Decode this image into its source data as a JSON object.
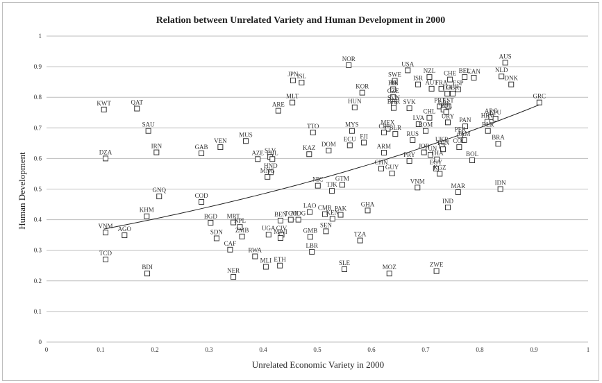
{
  "chart_data": {
    "type": "scatter",
    "title": "Relation between Unrelated Variety and Human Development in 2000",
    "xlabel": "Unrelated Economic Variety in 2000",
    "ylabel": "Human Development",
    "xlim": [
      0,
      1
    ],
    "ylim": [
      0,
      1
    ],
    "x_ticks": [
      "0",
      "0.1",
      "0.2",
      "0.3",
      "0.4",
      "0.5",
      "0.6",
      "0.7",
      "0.8",
      "0.9",
      "1"
    ],
    "y_ticks": [
      "0",
      "0.1",
      "0.2",
      "0.3",
      "0.4",
      "0.5",
      "0.6",
      "0.7",
      "0.8",
      "0.9",
      "1"
    ],
    "grid": "horizontal",
    "trendline": "exponential",
    "points": [
      {
        "label": "AUS",
        "x": 0.847,
        "y": 0.913
      },
      {
        "label": "NOR",
        "x": 0.558,
        "y": 0.905
      },
      {
        "label": "USA",
        "x": 0.667,
        "y": 0.888
      },
      {
        "label": "NLD",
        "x": 0.84,
        "y": 0.868
      },
      {
        "label": "NZL",
        "x": 0.707,
        "y": 0.866
      },
      {
        "label": "CHE",
        "x": 0.745,
        "y": 0.858
      },
      {
        "label": "BEL",
        "x": 0.772,
        "y": 0.866
      },
      {
        "label": "CAN",
        "x": 0.789,
        "y": 0.864
      },
      {
        "label": "DNK",
        "x": 0.858,
        "y": 0.842
      },
      {
        "label": "JPN",
        "x": 0.455,
        "y": 0.855
      },
      {
        "label": "ISL",
        "x": 0.471,
        "y": 0.848
      },
      {
        "label": "SWE",
        "x": 0.643,
        "y": 0.854
      },
      {
        "label": "ISR",
        "x": 0.686,
        "y": 0.842
      },
      {
        "label": "IRL",
        "x": 0.64,
        "y": 0.826
      },
      {
        "label": "AUT",
        "x": 0.711,
        "y": 0.828
      },
      {
        "label": "FRA",
        "x": 0.729,
        "y": 0.828
      },
      {
        "label": "ESP",
        "x": 0.76,
        "y": 0.826
      },
      {
        "label": "KOR",
        "x": 0.583,
        "y": 0.815
      },
      {
        "label": "FIN",
        "x": 0.64,
        "y": 0.826
      },
      {
        "label": "ITA",
        "x": 0.74,
        "y": 0.812
      },
      {
        "label": "GBR",
        "x": 0.75,
        "y": 0.812
      },
      {
        "label": "CZE",
        "x": 0.64,
        "y": 0.801
      },
      {
        "label": "MLT",
        "x": 0.454,
        "y": 0.783
      },
      {
        "label": "SVN",
        "x": 0.641,
        "y": 0.778
      },
      {
        "label": "HUN",
        "x": 0.569,
        "y": 0.767
      },
      {
        "label": "PRT",
        "x": 0.726,
        "y": 0.77
      },
      {
        "label": "EST",
        "x": 0.742,
        "y": 0.77
      },
      {
        "label": "KWT",
        "x": 0.106,
        "y": 0.76
      },
      {
        "label": "QAT",
        "x": 0.167,
        "y": 0.763
      },
      {
        "label": "ARE",
        "x": 0.428,
        "y": 0.756
      },
      {
        "label": "BHR",
        "x": 0.641,
        "y": 0.765
      },
      {
        "label": "SVK",
        "x": 0.67,
        "y": 0.764
      },
      {
        "label": "CRI",
        "x": 0.733,
        "y": 0.76
      },
      {
        "label": "POL",
        "x": 0.738,
        "y": 0.752
      },
      {
        "label": "GRC",
        "x": 0.91,
        "y": 0.783
      },
      {
        "label": "ARG",
        "x": 0.821,
        "y": 0.735
      },
      {
        "label": "LTU",
        "x": 0.829,
        "y": 0.73
      },
      {
        "label": "HRV",
        "x": 0.814,
        "y": 0.72
      },
      {
        "label": "URY",
        "x": 0.741,
        "y": 0.718
      },
      {
        "label": "LVA",
        "x": 0.687,
        "y": 0.712
      },
      {
        "label": "CHL",
        "x": 0.707,
        "y": 0.733
      },
      {
        "label": "PAN",
        "x": 0.773,
        "y": 0.705
      },
      {
        "label": "ROM",
        "x": 0.7,
        "y": 0.69
      },
      {
        "label": "MEX",
        "x": 0.63,
        "y": 0.697
      },
      {
        "label": "MYS",
        "x": 0.564,
        "y": 0.69
      },
      {
        "label": "BLR",
        "x": 0.815,
        "y": 0.69
      },
      {
        "label": "SAU",
        "x": 0.188,
        "y": 0.69
      },
      {
        "label": "TTO",
        "x": 0.492,
        "y": 0.685
      },
      {
        "label": "CRI",
        "x": 0.623,
        "y": 0.685
      },
      {
        "label": "BLR",
        "x": 0.644,
        "y": 0.68
      },
      {
        "label": "RUS",
        "x": 0.676,
        "y": 0.66
      },
      {
        "label": "PER",
        "x": 0.764,
        "y": 0.675
      },
      {
        "label": "JAM",
        "x": 0.771,
        "y": 0.66
      },
      {
        "label": "FJI",
        "x": 0.586,
        "y": 0.652
      },
      {
        "label": "ECU",
        "x": 0.56,
        "y": 0.643
      },
      {
        "label": "MUS",
        "x": 0.368,
        "y": 0.657
      },
      {
        "label": "BRA",
        "x": 0.834,
        "y": 0.648
      },
      {
        "label": "UKR",
        "x": 0.73,
        "y": 0.642
      },
      {
        "label": "VEN",
        "x": 0.321,
        "y": 0.637
      },
      {
        "label": "COL",
        "x": 0.762,
        "y": 0.637
      },
      {
        "label": "DOM",
        "x": 0.521,
        "y": 0.626
      },
      {
        "label": "TUN",
        "x": 0.732,
        "y": 0.63
      },
      {
        "label": "IRN",
        "x": 0.203,
        "y": 0.62
      },
      {
        "label": "GAB",
        "x": 0.286,
        "y": 0.617
      },
      {
        "label": "KAZ",
        "x": 0.485,
        "y": 0.614
      },
      {
        "label": "ARM",
        "x": 0.623,
        "y": 0.619
      },
      {
        "label": "JOR",
        "x": 0.697,
        "y": 0.62
      },
      {
        "label": "TUN",
        "x": 0.709,
        "y": 0.612
      },
      {
        "label": "SLV",
        "x": 0.413,
        "y": 0.605
      },
      {
        "label": "DZA",
        "x": 0.109,
        "y": 0.6
      },
      {
        "label": "AZE",
        "x": 0.39,
        "y": 0.598
      },
      {
        "label": "PHL",
        "x": 0.417,
        "y": 0.598
      },
      {
        "label": "BOL",
        "x": 0.786,
        "y": 0.594
      },
      {
        "label": "PRY",
        "x": 0.67,
        "y": 0.592
      },
      {
        "label": "THA",
        "x": 0.721,
        "y": 0.597
      },
      {
        "label": "CHN",
        "x": 0.618,
        "y": 0.567
      },
      {
        "label": "EGY",
        "x": 0.719,
        "y": 0.567
      },
      {
        "label": "HND",
        "x": 0.414,
        "y": 0.555
      },
      {
        "label": "KGZ",
        "x": 0.726,
        "y": 0.55
      },
      {
        "label": "GUY",
        "x": 0.638,
        "y": 0.551
      },
      {
        "label": "MNG",
        "x": 0.408,
        "y": 0.54
      },
      {
        "label": "GTM",
        "x": 0.546,
        "y": 0.514
      },
      {
        "label": "NIC",
        "x": 0.501,
        "y": 0.511
      },
      {
        "label": "VNM",
        "x": 0.685,
        "y": 0.505
      },
      {
        "label": "TJK",
        "x": 0.527,
        "y": 0.494
      },
      {
        "label": "IDN",
        "x": 0.838,
        "y": 0.5
      },
      {
        "label": "MAR",
        "x": 0.76,
        "y": 0.49
      },
      {
        "label": "GNQ",
        "x": 0.208,
        "y": 0.476
      },
      {
        "label": "COD",
        "x": 0.286,
        "y": 0.458
      },
      {
        "label": "IND",
        "x": 0.741,
        "y": 0.44
      },
      {
        "label": "GHA",
        "x": 0.593,
        "y": 0.43
      },
      {
        "label": "LAO",
        "x": 0.486,
        "y": 0.425
      },
      {
        "label": "CMR",
        "x": 0.514,
        "y": 0.418
      },
      {
        "label": "PAK",
        "x": 0.543,
        "y": 0.416
      },
      {
        "label": "KHM",
        "x": 0.185,
        "y": 0.411
      },
      {
        "label": "KEN",
        "x": 0.528,
        "y": 0.403
      },
      {
        "label": "TGO",
        "x": 0.451,
        "y": 0.4
      },
      {
        "label": "BEN",
        "x": 0.432,
        "y": 0.397
      },
      {
        "label": "MDG",
        "x": 0.465,
        "y": 0.4
      },
      {
        "label": "BGD",
        "x": 0.303,
        "y": 0.39
      },
      {
        "label": "MRT",
        "x": 0.345,
        "y": 0.391
      },
      {
        "label": "NPL",
        "x": 0.357,
        "y": 0.376
      },
      {
        "label": "SEN",
        "x": 0.516,
        "y": 0.362
      },
      {
        "label": "GMB",
        "x": 0.487,
        "y": 0.344
      },
      {
        "label": "UGA",
        "x": 0.41,
        "y": 0.351
      },
      {
        "label": "CIV",
        "x": 0.434,
        "y": 0.351
      },
      {
        "label": "VNM",
        "x": 0.109,
        "y": 0.358
      },
      {
        "label": "AGO",
        "x": 0.144,
        "y": 0.349
      },
      {
        "label": "SDN",
        "x": 0.314,
        "y": 0.339
      },
      {
        "label": "ZMB",
        "x": 0.361,
        "y": 0.345
      },
      {
        "label": "MWI",
        "x": 0.432,
        "y": 0.34
      },
      {
        "label": "TZA",
        "x": 0.579,
        "y": 0.332
      },
      {
        "label": "CAF",
        "x": 0.339,
        "y": 0.302
      },
      {
        "label": "LBR",
        "x": 0.49,
        "y": 0.295
      },
      {
        "label": "RWA",
        "x": 0.385,
        "y": 0.28
      },
      {
        "label": "TCD",
        "x": 0.109,
        "y": 0.27
      },
      {
        "label": "MLI",
        "x": 0.405,
        "y": 0.246
      },
      {
        "label": "ETH",
        "x": 0.431,
        "y": 0.25
      },
      {
        "label": "SLE",
        "x": 0.55,
        "y": 0.238
      },
      {
        "label": "ZWE",
        "x": 0.72,
        "y": 0.232
      },
      {
        "label": "MOZ",
        "x": 0.633,
        "y": 0.224
      },
      {
        "label": "BDI",
        "x": 0.186,
        "y": 0.224
      },
      {
        "label": "NER",
        "x": 0.345,
        "y": 0.213
      }
    ]
  }
}
